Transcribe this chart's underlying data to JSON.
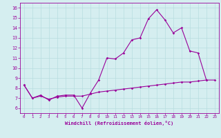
{
  "xlabel": "Windchill (Refroidissement éolien,°C)",
  "xlim": [
    -0.5,
    23.5
  ],
  "ylim": [
    5.5,
    16.5
  ],
  "yticks": [
    6,
    7,
    8,
    9,
    10,
    11,
    12,
    13,
    14,
    15,
    16
  ],
  "xticks": [
    0,
    1,
    2,
    3,
    4,
    5,
    6,
    7,
    8,
    9,
    10,
    11,
    12,
    13,
    14,
    15,
    16,
    17,
    18,
    19,
    20,
    21,
    22,
    23
  ],
  "bg_color": "#d5eef0",
  "line_color": "#990099",
  "grid_color": "#b8dde0",
  "line1_x": [
    0,
    1,
    2,
    3,
    4,
    5,
    6,
    7,
    8,
    9,
    10,
    11,
    12,
    13,
    14,
    15,
    16,
    17,
    18,
    19,
    20,
    21,
    22
  ],
  "line1_y": [
    8.3,
    7.0,
    7.3,
    6.8,
    7.2,
    7.3,
    7.3,
    6.0,
    7.5,
    8.8,
    11.0,
    10.9,
    11.5,
    12.8,
    13.0,
    14.9,
    15.8,
    14.8,
    13.5,
    14.0,
    11.7,
    11.5,
    8.8
  ],
  "line2_x": [
    0,
    1,
    2,
    3,
    4,
    5,
    6,
    7,
    8,
    9,
    10,
    11,
    12,
    13,
    14,
    15,
    16,
    17,
    18,
    19,
    20,
    21,
    22,
    23
  ],
  "line2_y": [
    8.3,
    7.0,
    7.2,
    6.9,
    7.1,
    7.2,
    7.2,
    7.2,
    7.4,
    7.6,
    7.7,
    7.8,
    7.9,
    8.0,
    8.1,
    8.2,
    8.3,
    8.4,
    8.5,
    8.6,
    8.6,
    8.7,
    8.8,
    8.8
  ]
}
